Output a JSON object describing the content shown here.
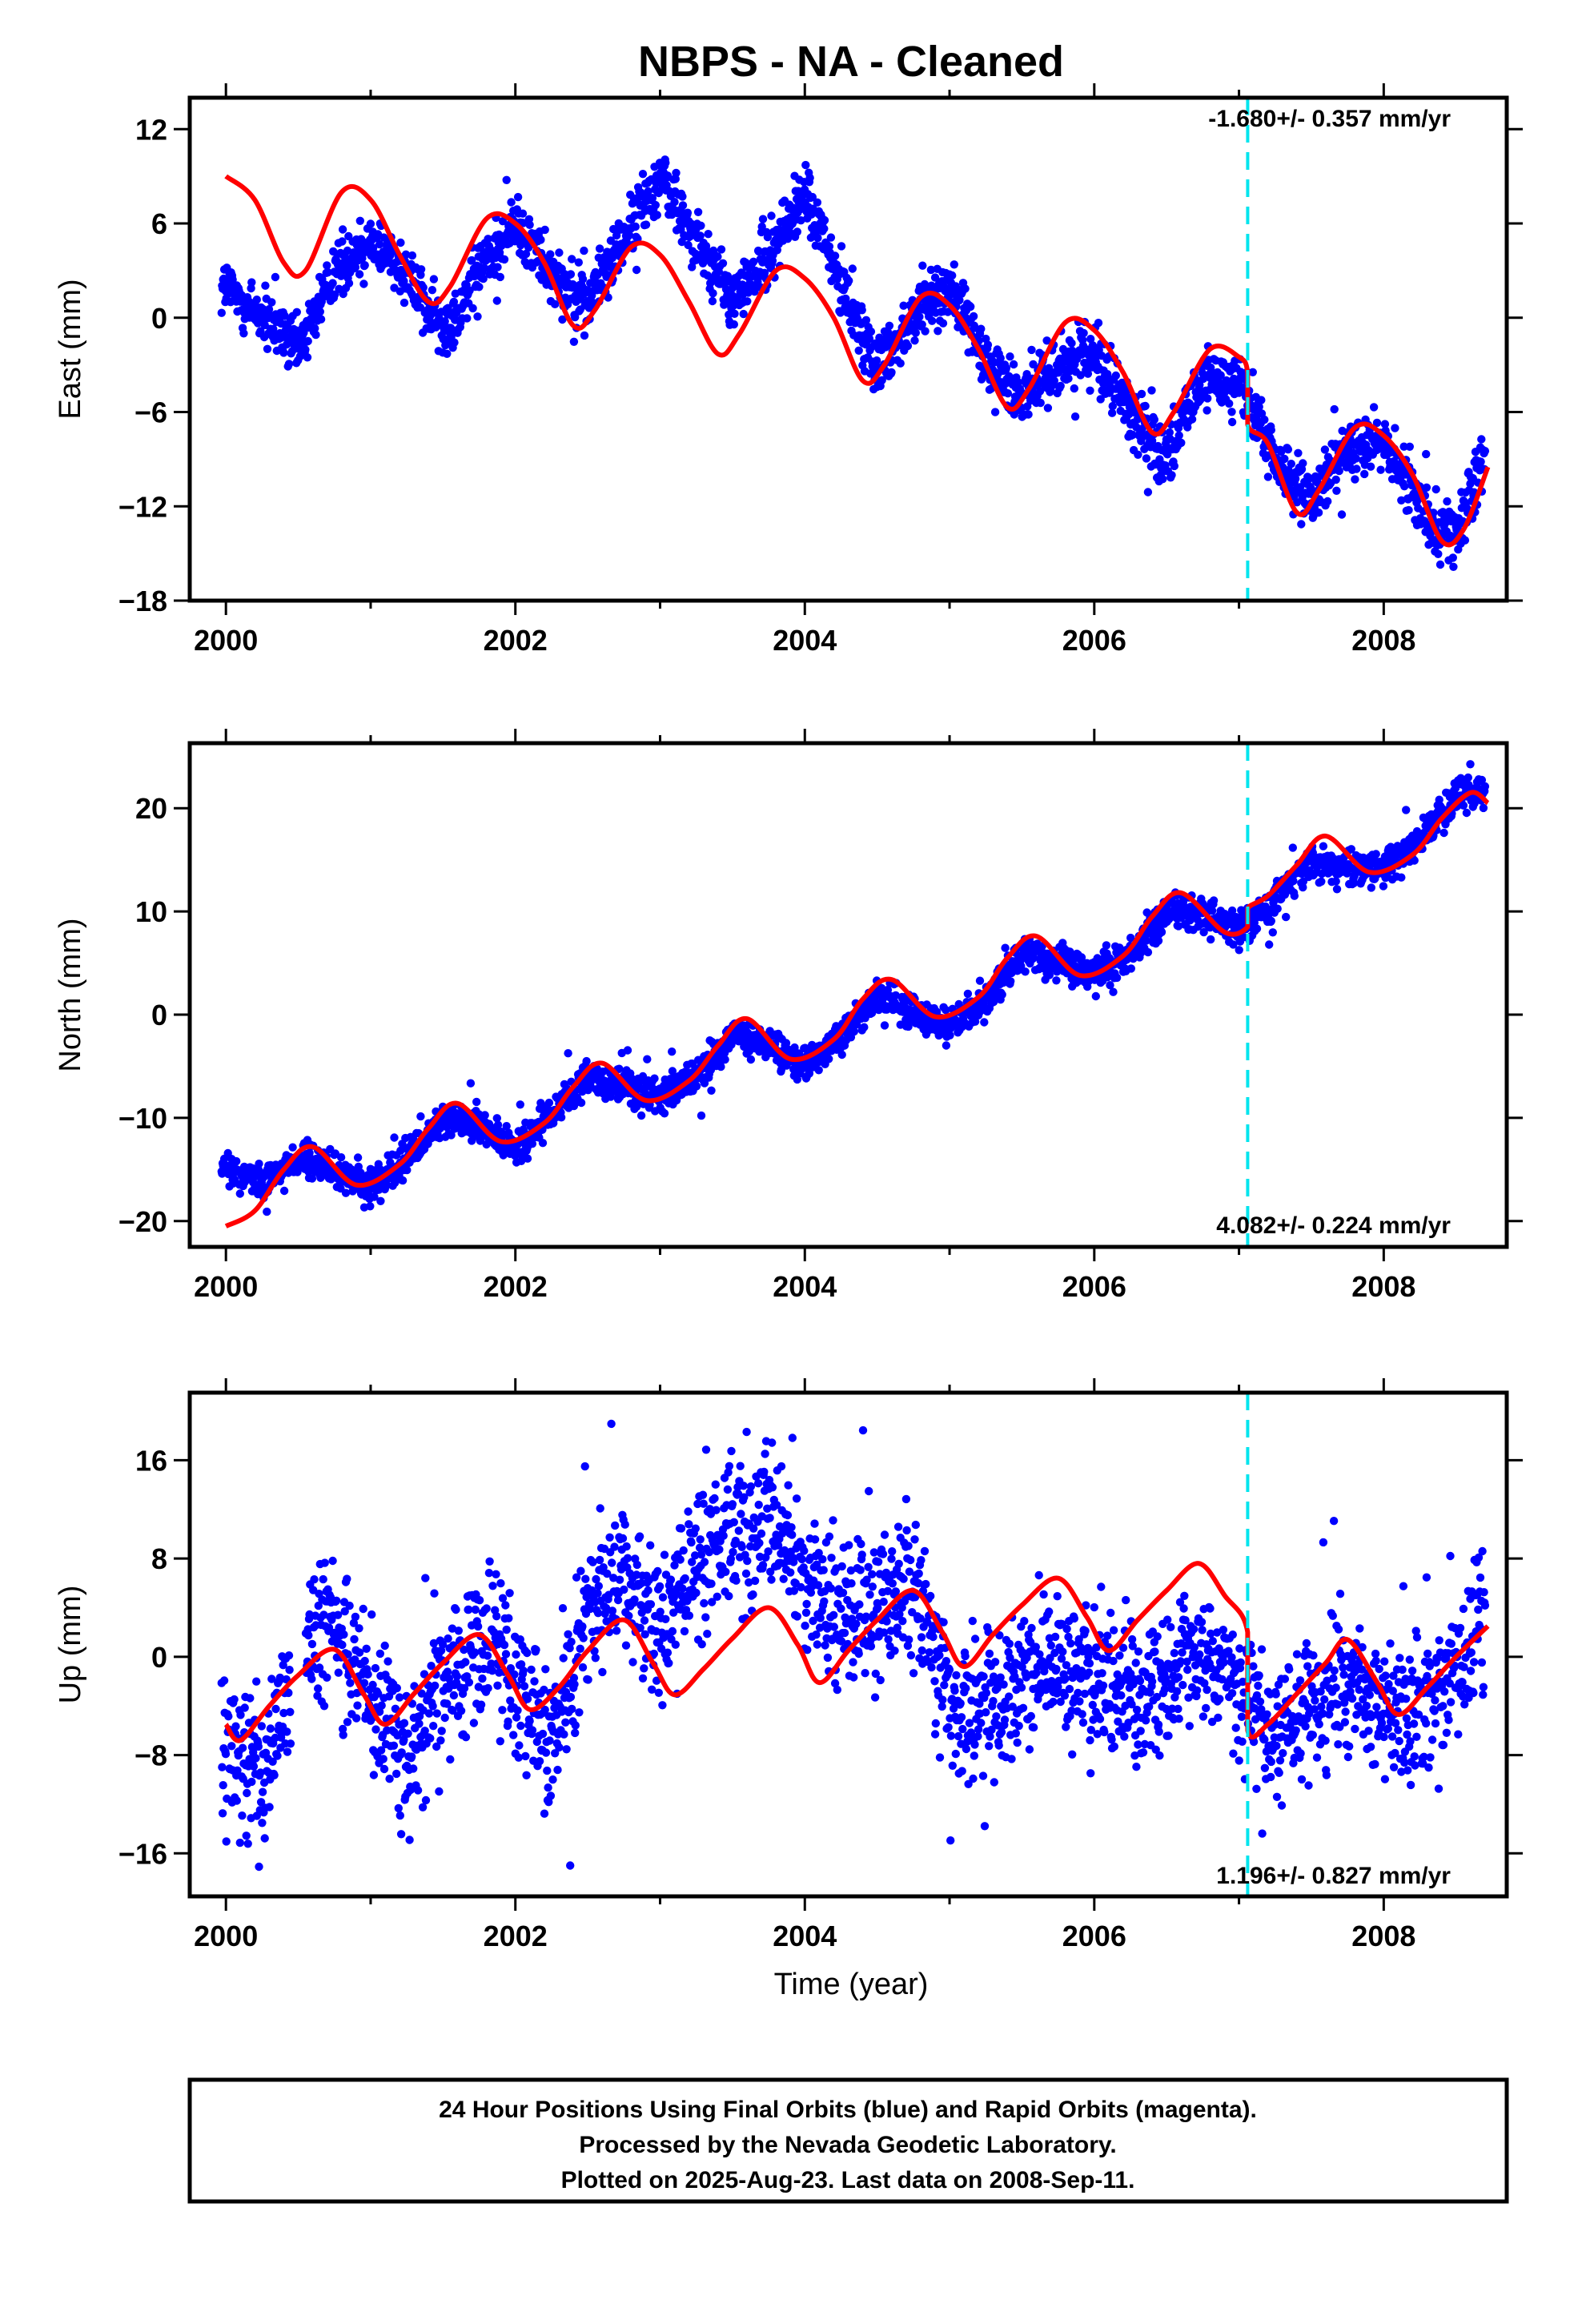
{
  "title": "NBPS  - NA - Cleaned",
  "x_tick_labels": [
    "2000",
    "2002",
    "2004",
    "2006",
    "2008"
  ],
  "x_axis_label": "Time (year)",
  "footer": {
    "line1": "24 Hour Positions Using Final Orbits (blue) and Rapid Orbits (magenta).",
    "line2": "Processed by the Nevada Geodetic Laboratory.",
    "line3": "Plotted on 2025-Aug-23. Last data on 2008-Sep-11."
  },
  "colors": {
    "data_points": "#0000ff",
    "model_fit": "#ff0000",
    "event_line": "#00e5ee",
    "axes": "#000000"
  },
  "chart_data": [
    {
      "type": "scatter",
      "title": "NBPS  - NA - Cleaned",
      "ylabel": "East (mm)",
      "xlabel": "",
      "xlim": [
        1999.75,
        2008.85
      ],
      "ylim": [
        -18,
        14
      ],
      "yticks": [
        -18,
        -12,
        -6,
        0,
        6,
        12
      ],
      "ytick_labels": [
        "−18",
        "−12",
        "−6",
        "0",
        "6",
        "12"
      ],
      "rate_text": "-1.680+/- 0.357 mm/yr",
      "event_line_x": 2007.06,
      "series": [
        {
          "kind": "points",
          "x": [
            2000.0,
            2000.25,
            2000.5,
            2000.75,
            2001.0,
            2001.25,
            2001.5,
            2001.75,
            2002.0,
            2002.25,
            2002.5,
            2002.75,
            2003.0,
            2003.25,
            2003.5,
            2003.75,
            2004.0,
            2004.25,
            2004.5,
            2004.75,
            2005.0,
            2005.25,
            2005.5,
            2005.75,
            2006.0,
            2006.25,
            2006.5,
            2006.75,
            2007.0,
            2007.25,
            2007.5,
            2007.75,
            2008.0,
            2008.25,
            2008.5,
            2008.7
          ],
          "y": [
            2,
            0,
            -2,
            3,
            5,
            3,
            -1,
            3,
            6,
            3,
            1,
            5,
            9,
            5,
            1,
            4,
            8,
            2,
            -3,
            0,
            2,
            -3,
            -5,
            -3,
            -2,
            -6,
            -9,
            -4,
            -4,
            -9,
            -12,
            -8,
            -8,
            -12,
            -14,
            -9
          ]
        },
        {
          "kind": "model",
          "x": [
            2000.0,
            2000.2,
            2000.4,
            2000.55,
            2000.8,
            2001.0,
            2001.2,
            2001.4,
            2001.55,
            2001.8,
            2002.0,
            2002.2,
            2002.4,
            2002.55,
            2002.8,
            2003.0,
            2003.2,
            2003.4,
            2003.55,
            2003.8,
            2004.0,
            2004.2,
            2004.4,
            2004.55,
            2004.8,
            2005.0,
            2005.2,
            2005.4,
            2005.55,
            2005.8,
            2006.0,
            2006.2,
            2006.4,
            2006.55,
            2006.8,
            2007.0,
            2007.06,
            2007.06,
            2007.2,
            2007.4,
            2007.55,
            2007.8,
            2008.0,
            2008.2,
            2008.4,
            2008.55,
            2008.72
          ],
          "y": [
            9,
            7.5,
            3.5,
            3,
            8,
            7.5,
            4,
            1,
            2,
            6.3,
            6,
            3.5,
            -0.5,
            0.5,
            4.5,
            4,
            1,
            -2.3,
            -1,
            3,
            2.5,
            0,
            -4,
            -3,
            1.3,
            0.8,
            -2,
            -5.7,
            -4.5,
            -0.3,
            -0.8,
            -3.5,
            -7.3,
            -6,
            -2,
            -2.5,
            -3.5,
            -6.8,
            -8,
            -12.4,
            -11,
            -7,
            -7.5,
            -10,
            -14.2,
            -13.5,
            -9.5
          ]
        }
      ]
    },
    {
      "type": "scatter",
      "ylabel": "North (mm)",
      "xlabel": "",
      "xlim": [
        1999.75,
        2008.85
      ],
      "ylim": [
        -22.5,
        26.3
      ],
      "yticks": [
        -20,
        -10,
        0,
        10,
        20
      ],
      "ytick_labels": [
        "−20",
        "−10",
        "0",
        "10",
        "20"
      ],
      "rate_text": "4.082+/- 0.224 mm/yr",
      "event_line_x": 2007.06,
      "series": [
        {
          "kind": "points",
          "x": [
            2000.0,
            2000.25,
            2000.5,
            2000.75,
            2001.0,
            2001.25,
            2001.5,
            2001.75,
            2002.0,
            2002.25,
            2002.5,
            2002.75,
            2003.0,
            2003.25,
            2003.5,
            2003.75,
            2004.0,
            2004.25,
            2004.5,
            2004.75,
            2005.0,
            2005.25,
            2005.5,
            2005.75,
            2006.0,
            2006.25,
            2006.5,
            2006.75,
            2007.0,
            2007.25,
            2007.5,
            2007.75,
            2008.0,
            2008.25,
            2008.5,
            2008.7
          ],
          "y": [
            -15,
            -16,
            -14,
            -15,
            -17,
            -14,
            -10,
            -11,
            -13,
            -10,
            -6,
            -7,
            -8,
            -6,
            -2,
            -3,
            -5,
            -2,
            2,
            0,
            -1,
            1,
            6,
            5,
            4,
            6,
            10,
            10,
            8,
            11,
            15,
            14,
            14,
            17,
            21,
            22
          ]
        },
        {
          "kind": "model",
          "x": [
            2000.0,
            2000.2,
            2000.4,
            2000.6,
            2000.9,
            2001.2,
            2001.4,
            2001.6,
            2001.9,
            2002.2,
            2002.4,
            2002.6,
            2002.9,
            2003.2,
            2003.4,
            2003.6,
            2003.9,
            2004.2,
            2004.4,
            2004.6,
            2004.9,
            2005.2,
            2005.4,
            2005.6,
            2005.9,
            2006.2,
            2006.4,
            2006.6,
            2006.9,
            2007.06,
            2007.06,
            2007.2,
            2007.4,
            2007.6,
            2007.9,
            2008.2,
            2008.4,
            2008.6,
            2008.72
          ],
          "y": [
            -20.5,
            -19,
            -15,
            -12.8,
            -16.5,
            -14.5,
            -11,
            -8.6,
            -12.3,
            -10.5,
            -7,
            -4.7,
            -8.3,
            -6.4,
            -3,
            -0.4,
            -4.3,
            -2.4,
            1.5,
            3.4,
            -0.2,
            1.7,
            5.5,
            7.6,
            3.8,
            5.7,
            9.5,
            11.8,
            8,
            8.5,
            10.3,
            11.5,
            14.5,
            17.3,
            13.8,
            15.5,
            19,
            21.5,
            20.5
          ]
        }
      ]
    },
    {
      "type": "scatter",
      "ylabel": "Up (mm)",
      "xlabel": "Time (year)",
      "xlim": [
        1999.75,
        2008.85
      ],
      "ylim": [
        -19.5,
        21.5
      ],
      "yticks": [
        -16,
        -8,
        0,
        8,
        16
      ],
      "ytick_labels": [
        "−16",
        "−8",
        "0",
        "8",
        "16"
      ],
      "rate_text": "1.196+/- 0.827 mm/yr",
      "event_line_x": 2007.06,
      "series": [
        {
          "kind": "points",
          "x": [
            2000.0,
            2000.25,
            2000.5,
            2000.75,
            2001.0,
            2001.25,
            2001.5,
            2001.75,
            2002.0,
            2002.25,
            2002.5,
            2002.75,
            2003.0,
            2003.25,
            2003.5,
            2003.75,
            2004.0,
            2004.25,
            2004.5,
            2004.75,
            2005.0,
            2005.25,
            2005.5,
            2005.75,
            2006.0,
            2006.25,
            2006.5,
            2006.75,
            2007.0,
            2007.25,
            2007.5,
            2007.75,
            2008.0,
            2008.25,
            2008.5,
            2008.7
          ],
          "y": [
            -6,
            -10,
            0,
            2,
            -3,
            -8,
            -3,
            2,
            -1,
            -8,
            4,
            6,
            2,
            8,
            10,
            12,
            6,
            4,
            4,
            6,
            -4,
            -5,
            -2,
            -1,
            -2,
            -3,
            -2,
            0,
            -2,
            -6,
            -4,
            -2,
            -4,
            -5,
            -1,
            4
          ]
        },
        {
          "kind": "model",
          "x": [
            2000.0,
            2000.1,
            2000.3,
            2000.5,
            2000.75,
            2000.95,
            2001.1,
            2001.3,
            2001.5,
            2001.75,
            2001.95,
            2002.1,
            2002.3,
            2002.5,
            2002.75,
            2002.95,
            2003.1,
            2003.3,
            2003.5,
            2003.75,
            2003.95,
            2004.1,
            2004.3,
            2004.5,
            2004.75,
            2004.95,
            2005.1,
            2005.3,
            2005.5,
            2005.75,
            2005.95,
            2006.1,
            2006.3,
            2006.5,
            2006.72,
            2006.9,
            2007.06,
            2007.06,
            2007.2,
            2007.4,
            2007.6,
            2007.75,
            2007.95,
            2008.1,
            2008.3,
            2008.5,
            2008.72
          ],
          "y": [
            -5.5,
            -6.8,
            -4,
            -1.5,
            0.6,
            -3,
            -5.5,
            -3,
            -0.5,
            1.8,
            -1.5,
            -4.3,
            -2.5,
            0.5,
            3,
            -0.5,
            -3.1,
            -1,
            1.5,
            4,
            1,
            -2.1,
            0.5,
            3,
            5.4,
            2,
            -0.8,
            1.8,
            4.2,
            6.4,
            3.2,
            0.5,
            3,
            5.4,
            7.6,
            5,
            2,
            -6,
            -5.5,
            -3,
            -0.5,
            1.4,
            -2,
            -4.7,
            -2.5,
            0,
            2.5
          ]
        }
      ]
    }
  ]
}
